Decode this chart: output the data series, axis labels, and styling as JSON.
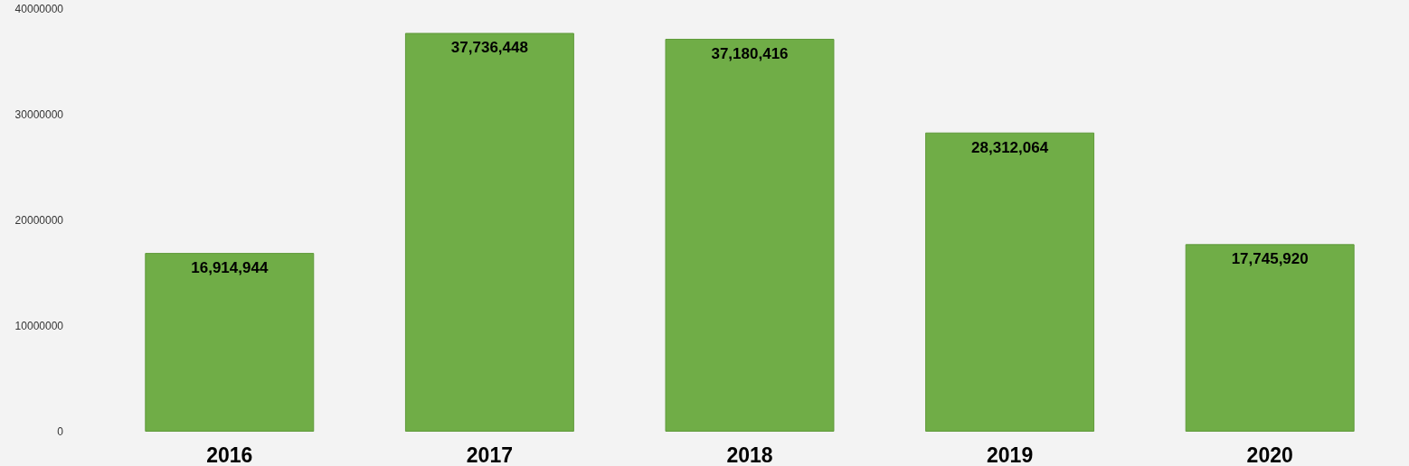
{
  "chart_data": {
    "type": "bar",
    "categories": [
      "2016",
      "2017",
      "2018",
      "2019",
      "2020"
    ],
    "values": [
      16914944,
      37736448,
      37180416,
      28312064,
      17745920
    ],
    "value_labels": [
      "16,914,944",
      "37,736,448",
      "37,180,416",
      "28,312,064",
      "17,745,920"
    ],
    "color": "#70ad47",
    "ylim": [
      0,
      40000000
    ],
    "yticks": [
      0,
      10000000,
      20000000,
      30000000,
      40000000
    ],
    "grid": false
  }
}
